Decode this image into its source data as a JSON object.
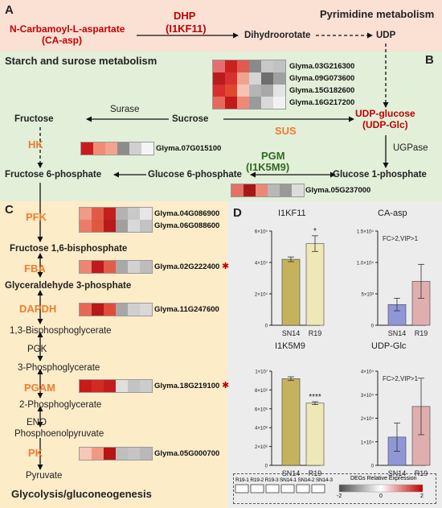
{
  "panels": {
    "A": {
      "letter": "A",
      "title": "Pyrimidine metabolism"
    },
    "B": {
      "letter": "B",
      "title": "Starch and surose metabolism"
    },
    "C": {
      "letter": "C",
      "title": "Glycolysis/gluconeogenesis"
    },
    "D": {
      "letter": "D"
    }
  },
  "pyrimidine": {
    "substrate": "N-Carbamoyl-L-aspartate",
    "substrate_abbr": "(CA-asp)",
    "enzyme": "DHP",
    "enzyme_id": "(I1KF11)",
    "dihydroorotate": "Dihydroorotate",
    "udp": "UDP"
  },
  "starch": {
    "udp_glucose": "UDP-glucose",
    "udp_glc": "(UDP-Glc)",
    "sucrose": "Sucrose",
    "fructose": "Fructose",
    "surase": "Surase",
    "sus": "SUS",
    "hk": "HK",
    "pgm": "PGM",
    "pgm_id": "(I1K5M9)",
    "ugpase": "UGPase",
    "f6p": "Fructose 6-phosphate",
    "g6p": "Glucose 6-phosphate",
    "g1p": "Glucose 1-phosphate"
  },
  "glycolysis": {
    "pfk": "PFK",
    "f16bp": "Fructose 1,6-bisphosphate",
    "fba": "FBA",
    "g3p": "Glyceraldehyde 3-phosphate",
    "dapdh": "DAPDH",
    "bpg": "1,3-Bisphosphoglycerate",
    "pgk": "PGK",
    "pg3": "3-Phosphoglycerate",
    "pgam": "PGAM",
    "pg2": "2-Phosphoglycerate",
    "eno": "ENO",
    "pep": "Phosphoenolpyruvate",
    "pk": "PK",
    "pyruvate": "Pyruvate"
  },
  "heatmaps": [
    {
      "id": "sus",
      "genes": [
        "Glyma.03G216300",
        "Glyma.09G073600",
        "Glyma.15G182600",
        "Glyma.16G217200"
      ],
      "colors": [
        [
          "#e56f6f",
          "#c9221f",
          "#e05a52",
          "#8a8a8a",
          "#c8c8c8",
          "#c2c2c2"
        ],
        [
          "#b81d1d",
          "#d83030",
          "#f0a38c",
          "#d5d5d5",
          "#6e6e6e",
          "#a0a0a0"
        ],
        [
          "#d92e2e",
          "#e0472f",
          "#f6c3b2",
          "#b5b5b5",
          "#a8a8a8",
          "#e3e3e3"
        ],
        [
          "#e66a5b",
          "#c01a1a",
          "#f08878",
          "#9a9a9a",
          "#d8d8d8",
          "#f1f1f1"
        ]
      ]
    },
    {
      "id": "hk",
      "genes": [
        "Glyma.07G015100"
      ],
      "colors": [
        [
          "#c81c1c",
          "#f28b76",
          "#f4a48e",
          "#8c8c8c",
          "#d0d0d0",
          "#f4f4f4"
        ]
      ]
    },
    {
      "id": "pgm",
      "genes": [
        "Glyma.05G237000"
      ],
      "colors": [
        [
          "#e57063",
          "#a51818",
          "#ec8876",
          "#b8b8b8",
          "#999999",
          "#dcdcdc"
        ]
      ]
    },
    {
      "id": "pfk",
      "genes": [
        "Glyma.04G086900",
        "Glyma.06G088600"
      ],
      "colors": [
        [
          "#f09a88",
          "#e05a48",
          "#c41f1f",
          "#b3b3b3",
          "#c9c9c9",
          "#e6e6e6"
        ],
        [
          "#ec7c6a",
          "#e0573f",
          "#b81a1a",
          "#a0a0a0",
          "#d9d9d9",
          "#c3c3c3"
        ]
      ]
    },
    {
      "id": "fba",
      "genes": [
        "Glyma.02G222400"
      ],
      "colors": [
        [
          "#ee8571",
          "#c01a1a",
          "#e65a48",
          "#a9a9a9",
          "#d2d2d2",
          "#bdbdbd"
        ]
      ]
    },
    {
      "id": "dapdh",
      "genes": [
        "Glyma.11G247600"
      ],
      "colors": [
        [
          "#e86757",
          "#b81818",
          "#e24b3a",
          "#a7a7a7",
          "#cfcfcf",
          "#d8d8d8"
        ]
      ]
    },
    {
      "id": "pgam",
      "genes": [
        "Glyma.18G219100"
      ],
      "colors": [
        [
          "#c81a1a",
          "#d32a24",
          "#c41c1c",
          "#dfdfdf",
          "#c4c4c4",
          "#cccccc"
        ]
      ]
    },
    {
      "id": "pk",
      "genes": [
        "Glyma.05G000700"
      ],
      "colors": [
        [
          "#f7c7b8",
          "#f09a85",
          "#b81515",
          "#bfbfbf",
          "#c5c5c5",
          "#b9b9b9"
        ]
      ]
    }
  ],
  "charts": {
    "ticks_i1kf11": [
      "0",
      "2×10⁴",
      "4×10⁴",
      "6×10⁴"
    ],
    "ticks_caasp": [
      "0",
      "5×10³",
      "1.0×10⁴",
      "1.5×10⁴"
    ],
    "ticks_i1k5m9": [
      "0",
      "2×10⁶",
      "4×10⁶",
      "6×10⁶",
      "8×10⁶",
      "1×10⁷"
    ],
    "ticks_udpglc": [
      "0",
      "1×10⁴",
      "2×10⁴",
      "3×10⁴",
      "4×10⁴"
    ]
  },
  "chart_data": [
    {
      "type": "bar",
      "title": "I1KF11",
      "categories": [
        "SN14",
        "R19"
      ],
      "values": [
        42000,
        52000
      ],
      "errors": [
        1500,
        5000
      ],
      "ylim": [
        0,
        60000
      ],
      "significance": "*",
      "colors": [
        "#c5b25c",
        "#eee7b6"
      ]
    },
    {
      "type": "bar",
      "title": "CA-asp",
      "categories": [
        "SN14",
        "R19"
      ],
      "values": [
        3300,
        7000
      ],
      "errors": [
        1000,
        2700
      ],
      "ylim": [
        0,
        15000
      ],
      "annotation": "FC>2,VIP>1",
      "colors": [
        "#8f97d6",
        "#dfaeae"
      ]
    },
    {
      "type": "bar",
      "title": "I1K5M9",
      "categories": [
        "SN14",
        "R19"
      ],
      "values": [
        9200000,
        6600000
      ],
      "errors": [
        200000,
        150000
      ],
      "ylim": [
        0,
        10000000
      ],
      "significance": "****",
      "colors": [
        "#c5b25c",
        "#eee7b6"
      ]
    },
    {
      "type": "bar",
      "title": "UDP-Glc",
      "categories": [
        "SN14",
        "R19"
      ],
      "values": [
        12000,
        25000
      ],
      "errors": [
        6000,
        12000
      ],
      "ylim": [
        0,
        40000
      ],
      "annotation": "FC>2,VIP>1",
      "colors": [
        "#8f97d6",
        "#dfaeae"
      ]
    }
  ],
  "legend": {
    "samples": [
      "R19-1",
      "R19-2",
      "R19-3",
      "SN14-1",
      "SN14-2",
      "SN14-3"
    ],
    "title": "DEGs Relative Expression",
    "scale": [
      "-2",
      "0",
      "2"
    ],
    "gradient": [
      "#4d4d4d",
      "#ffffff",
      "#c00000"
    ]
  }
}
